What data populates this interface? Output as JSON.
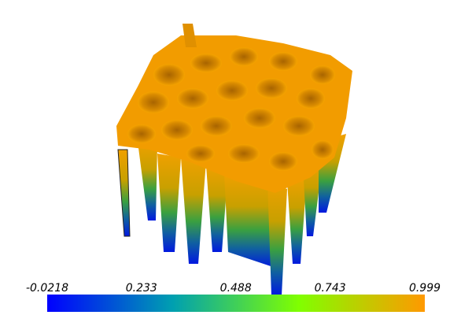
{
  "colorbar": {
    "range": [
      -0.0218,
      0.999
    ],
    "ticks": [
      -0.0218,
      0.233,
      0.488,
      0.743,
      0.999
    ],
    "colors": [
      "#0000ff",
      "#00a0b0",
      "#80ff00",
      "#ff9900"
    ]
  }
}
